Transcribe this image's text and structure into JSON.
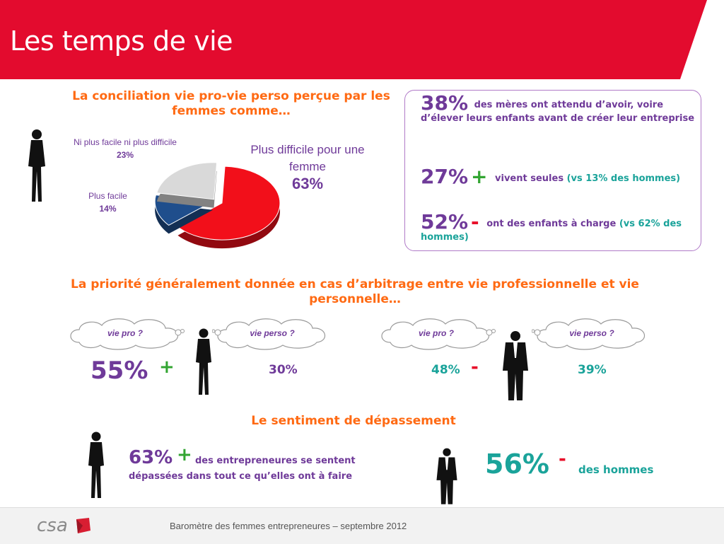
{
  "header": {
    "title": "Les temps de vie",
    "banner_color": "#e30b2e"
  },
  "section1": {
    "title": "La conciliation vie pro-vie perso perçue par les femmes comme…",
    "pie_labels": {
      "neither": "Ni plus facile ni plus difficile",
      "neither_pct": "23%",
      "easier": "Plus facile",
      "easier_pct": "14%",
      "harder": "Plus difficile pour une femme",
      "harder_pct": "63%"
    }
  },
  "chart_data": {
    "type": "pie",
    "title": "",
    "slices": [
      {
        "label": "Plus difficile pour une femme",
        "value": 63,
        "color": "#f20f1a"
      },
      {
        "label": "Plus facile",
        "value": 14,
        "color": "#1f4e8c"
      },
      {
        "label": "Ni plus facile ni plus difficile",
        "value": 23,
        "color": "#d9d9d9"
      }
    ]
  },
  "stats_box": {
    "stat1_pct": "38%",
    "stat1_text": "des mères ont attendu d’avoir, voire d’élever leurs enfants avant de créer leur entreprise",
    "stat2_pct": "27%",
    "stat2_sign": "+",
    "stat2_text": "vivent seules",
    "stat2_compare": "(vs 13% des hommes)",
    "stat3_pct": "52%",
    "stat3_sign": "-",
    "stat3_text": "ont des enfants à charge",
    "stat3_compare": "(vs 62% des hommes)"
  },
  "section2": {
    "title": "La priorité généralement donnée en cas d’arbitrage entre vie professionnelle et vie personnelle…",
    "women": {
      "cloud_pro": "vie pro ?",
      "cloud_perso": "vie perso ?",
      "pro_pct": "55%",
      "pro_sign": "+",
      "perso_pct": "30%"
    },
    "men": {
      "cloud_pro": "vie pro ?",
      "cloud_perso": "vie perso ?",
      "pro_pct": "48%",
      "pro_sign": "-",
      "perso_pct": "39%"
    }
  },
  "section3": {
    "title": "Le sentiment de dépassement",
    "women_pct": "63%",
    "women_sign": "+",
    "women_text_line1": "des entrepreneures se sentent",
    "women_text_line2": "dépassées dans tout ce qu’elles ont à faire",
    "men_pct": "56%",
    "men_sign": "-",
    "men_text": "des hommes"
  },
  "footer": {
    "logo": "csa",
    "text": "Baromètre des femmes entrepreneures –  septembre 2012"
  },
  "colors": {
    "orange": "#ff6a13",
    "purple": "#6f3a99",
    "teal": "#1aa39a",
    "green": "#33a532",
    "red": "#e8102a"
  }
}
